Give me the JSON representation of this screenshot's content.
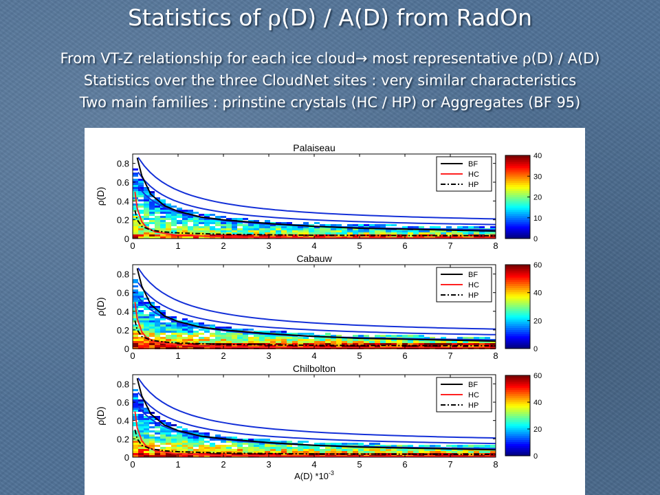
{
  "slide": {
    "title_prefix": "Statistics of ",
    "title_rho": "ρ",
    "title_suffix": "(D) / A(D) from RadOn",
    "line1_prefix": "From VT-Z relationship for each ice cloud",
    "line1_arrow": "→",
    "line1_middle": " most representative ",
    "line1_rho": "ρ",
    "line1_suffix": "(D) / A(D)",
    "line2": "Statistics over the three CloudNet sites : very similar characteristics",
    "line3": "Two main families : prinstine crystals (HC / HP) or Aggregates (BF 95)"
  },
  "chart_data": [
    {
      "type": "heatmap",
      "title": "Palaiseau",
      "ylabel": "ρ(D)",
      "xlabel": "",
      "xlim": [
        0,
        8
      ],
      "ylim": [
        0,
        0.9
      ],
      "x_ticks": [
        "0",
        "1",
        "2",
        "3",
        "4",
        "5",
        "6",
        "7",
        "8"
      ],
      "y_ticks": [
        "0",
        "0.2",
        "0.4",
        "0.6",
        "0.8"
      ],
      "colorbar": {
        "min": 0,
        "max": 40,
        "ticks": [
          "0",
          "10",
          "20",
          "30",
          "40"
        ]
      },
      "legend": {
        "position": "top-right",
        "entries": [
          "BF",
          "HC",
          "HP"
        ]
      },
      "curves": [
        {
          "name": "BF",
          "color": "#000000",
          "style": "solid",
          "x": [
            0.1,
            0.2,
            0.4,
            0.7,
            1,
            1.5,
            2,
            3,
            4,
            5,
            6,
            7,
            8
          ],
          "y": [
            0.86,
            0.67,
            0.47,
            0.35,
            0.29,
            0.23,
            0.2,
            0.16,
            0.13,
            0.11,
            0.1,
            0.09,
            0.08
          ]
        },
        {
          "name": "HC",
          "color": "#ff2020",
          "style": "solid",
          "x": [
            0.05,
            0.1,
            0.2,
            0.3,
            0.5,
            1,
            2,
            4,
            8
          ],
          "y": [
            0.5,
            0.32,
            0.18,
            0.12,
            0.07,
            0.035,
            0.018,
            0.009,
            0.005
          ]
        },
        {
          "name": "HP",
          "color": "#000000",
          "style": "dashdot",
          "x": [
            0.05,
            0.1,
            0.2,
            0.4,
            0.7,
            1,
            2,
            4,
            8
          ],
          "y": [
            0.3,
            0.2,
            0.13,
            0.09,
            0.07,
            0.06,
            0.045,
            0.035,
            0.03
          ]
        }
      ]
    },
    {
      "type": "heatmap",
      "title": "Cabauw",
      "ylabel": "ρ(D)",
      "xlabel": "",
      "xlim": [
        0,
        8
      ],
      "ylim": [
        0,
        0.9
      ],
      "x_ticks": [
        "0",
        "1",
        "2",
        "3",
        "4",
        "5",
        "6",
        "7",
        "8"
      ],
      "y_ticks": [
        "0",
        "0.2",
        "0.4",
        "0.6",
        "0.8"
      ],
      "colorbar": {
        "min": 0,
        "max": 60,
        "ticks": [
          "0",
          "20",
          "40",
          "60"
        ]
      },
      "legend": {
        "position": "top-right",
        "entries": [
          "BF",
          "HC",
          "HP"
        ]
      },
      "curves": [
        {
          "name": "BF",
          "color": "#000000",
          "style": "solid",
          "x": [
            0.1,
            0.2,
            0.4,
            0.7,
            1,
            1.5,
            2,
            3,
            4,
            5,
            6,
            7,
            8
          ],
          "y": [
            0.86,
            0.67,
            0.47,
            0.35,
            0.29,
            0.23,
            0.2,
            0.16,
            0.13,
            0.11,
            0.1,
            0.09,
            0.08
          ]
        },
        {
          "name": "HC",
          "color": "#ff2020",
          "style": "solid",
          "x": [
            0.05,
            0.1,
            0.2,
            0.3,
            0.5,
            1,
            2,
            4,
            8
          ],
          "y": [
            0.5,
            0.32,
            0.18,
            0.12,
            0.07,
            0.035,
            0.018,
            0.009,
            0.005
          ]
        },
        {
          "name": "HP",
          "color": "#000000",
          "style": "dashdot",
          "x": [
            0.05,
            0.1,
            0.2,
            0.4,
            0.7,
            1,
            2,
            4,
            8
          ],
          "y": [
            0.3,
            0.2,
            0.13,
            0.09,
            0.07,
            0.06,
            0.045,
            0.035,
            0.03
          ]
        }
      ]
    },
    {
      "type": "heatmap",
      "title": "Chilbolton",
      "ylabel": "ρ(D)",
      "xlabel": "A(D) *10",
      "xlabel_exponent": "-3",
      "xlim": [
        0,
        8
      ],
      "ylim": [
        0,
        0.9
      ],
      "x_ticks": [
        "0",
        "1",
        "2",
        "3",
        "4",
        "5",
        "6",
        "7",
        "8"
      ],
      "y_ticks": [
        "0",
        "0.2",
        "0.4",
        "0.6",
        "0.8"
      ],
      "colorbar": {
        "min": 0,
        "max": 60,
        "ticks": [
          "0",
          "20",
          "40",
          "60"
        ]
      },
      "legend": {
        "position": "top-right",
        "entries": [
          "BF",
          "HC",
          "HP"
        ]
      },
      "curves": [
        {
          "name": "BF",
          "color": "#000000",
          "style": "solid",
          "x": [
            0.1,
            0.2,
            0.4,
            0.7,
            1,
            1.5,
            2,
            3,
            4,
            5,
            6,
            7,
            8
          ],
          "y": [
            0.86,
            0.67,
            0.47,
            0.35,
            0.29,
            0.23,
            0.2,
            0.16,
            0.13,
            0.11,
            0.1,
            0.09,
            0.08
          ]
        },
        {
          "name": "HC",
          "color": "#ff2020",
          "style": "solid",
          "x": [
            0.05,
            0.1,
            0.2,
            0.3,
            0.5,
            1,
            2,
            4,
            8
          ],
          "y": [
            0.5,
            0.32,
            0.18,
            0.12,
            0.07,
            0.035,
            0.018,
            0.009,
            0.005
          ]
        },
        {
          "name": "HP",
          "color": "#000000",
          "style": "dashdot",
          "x": [
            0.05,
            0.1,
            0.2,
            0.4,
            0.7,
            1,
            2,
            4,
            8
          ],
          "y": [
            0.3,
            0.2,
            0.13,
            0.09,
            0.07,
            0.06,
            0.045,
            0.035,
            0.03
          ]
        }
      ]
    }
  ]
}
